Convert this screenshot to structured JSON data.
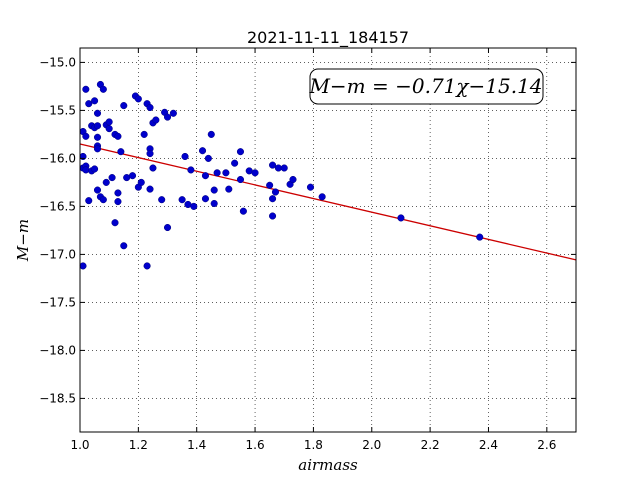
{
  "chart_data": {
    "type": "scatter",
    "title": "2021-11-11_184157",
    "xlabel": "airmass",
    "ylabel": "M−m",
    "xlim": [
      1.0,
      2.7
    ],
    "ylim": [
      -18.85,
      -14.85
    ],
    "y_inverted": true,
    "grid": true,
    "xticks": [
      "1.0",
      "1.2",
      "1.4",
      "1.6",
      "1.8",
      "2.0",
      "2.2",
      "2.4",
      "2.6"
    ],
    "yticks": [
      "−15.0",
      "−15.5",
      "−16.0",
      "−16.5",
      "−17.0",
      "−17.5",
      "−18.0",
      "−18.5"
    ],
    "annotation": "M−m = −0.71χ−15.14",
    "fit": {
      "slope": -0.71,
      "intercept": -15.14,
      "color": "#cc0000"
    },
    "point_color": "#0000cc",
    "points": [
      [
        1.0,
        -15.98
      ],
      [
        1.0,
        -17.12
      ],
      [
        1.01,
        -15.72
      ],
      [
        1.01,
        -16.1
      ],
      [
        1.02,
        -15.28
      ],
      [
        1.02,
        -15.77
      ],
      [
        1.02,
        -16.08
      ],
      [
        1.02,
        -16.12
      ],
      [
        1.03,
        -16.44
      ],
      [
        1.03,
        -15.43
      ],
      [
        1.04,
        -15.66
      ],
      [
        1.04,
        -16.13
      ],
      [
        1.05,
        -15.4
      ],
      [
        1.05,
        -15.68
      ],
      [
        1.05,
        -16.11
      ],
      [
        1.06,
        -15.53
      ],
      [
        1.06,
        -15.66
      ],
      [
        1.06,
        -15.87
      ],
      [
        1.06,
        -15.9
      ],
      [
        1.06,
        -15.78
      ],
      [
        1.06,
        -16.33
      ],
      [
        1.07,
        -15.23
      ],
      [
        1.07,
        -16.4
      ],
      [
        1.08,
        -15.28
      ],
      [
        1.08,
        -16.43
      ],
      [
        1.09,
        -15.65
      ],
      [
        1.09,
        -16.25
      ],
      [
        1.1,
        -15.62
      ],
      [
        1.1,
        -15.69
      ],
      [
        1.11,
        -16.2
      ],
      [
        1.12,
        -15.75
      ],
      [
        1.12,
        -16.67
      ],
      [
        1.13,
        -15.77
      ],
      [
        1.13,
        -16.36
      ],
      [
        1.13,
        -16.45
      ],
      [
        1.14,
        -15.93
      ],
      [
        1.15,
        -16.91
      ],
      [
        1.15,
        -15.45
      ],
      [
        1.16,
        -16.2
      ],
      [
        1.18,
        -16.18
      ],
      [
        1.19,
        -15.35
      ],
      [
        1.2,
        -15.38
      ],
      [
        1.2,
        -16.3
      ],
      [
        1.21,
        -16.25
      ],
      [
        1.22,
        -15.75
      ],
      [
        1.23,
        -17.12
      ],
      [
        1.23,
        -15.43
      ],
      [
        1.24,
        -15.47
      ],
      [
        1.24,
        -15.9
      ],
      [
        1.24,
        -15.95
      ],
      [
        1.24,
        -16.32
      ],
      [
        1.25,
        -15.63
      ],
      [
        1.25,
        -16.1
      ],
      [
        1.26,
        -15.6
      ],
      [
        1.28,
        -16.43
      ],
      [
        1.29,
        -15.52
      ],
      [
        1.3,
        -15.57
      ],
      [
        1.3,
        -16.72
      ],
      [
        1.32,
        -15.53
      ],
      [
        1.35,
        -16.43
      ],
      [
        1.36,
        -15.98
      ],
      [
        1.37,
        -16.48
      ],
      [
        1.38,
        -16.12
      ],
      [
        1.39,
        -16.5
      ],
      [
        1.42,
        -15.92
      ],
      [
        1.43,
        -16.18
      ],
      [
        1.43,
        -16.42
      ],
      [
        1.44,
        -16.0
      ],
      [
        1.45,
        -15.75
      ],
      [
        1.46,
        -16.33
      ],
      [
        1.46,
        -16.47
      ],
      [
        1.47,
        -16.15
      ],
      [
        1.5,
        -16.15
      ],
      [
        1.51,
        -16.32
      ],
      [
        1.53,
        -16.05
      ],
      [
        1.55,
        -15.93
      ],
      [
        1.55,
        -16.22
      ],
      [
        1.56,
        -16.55
      ],
      [
        1.58,
        -16.13
      ],
      [
        1.6,
        -16.15
      ],
      [
        1.65,
        -16.28
      ],
      [
        1.66,
        -16.07
      ],
      [
        1.66,
        -16.42
      ],
      [
        1.66,
        -16.6
      ],
      [
        1.67,
        -16.35
      ],
      [
        1.68,
        -16.1
      ],
      [
        1.7,
        -16.1
      ],
      [
        1.72,
        -16.27
      ],
      [
        1.73,
        -16.22
      ],
      [
        1.79,
        -16.3
      ],
      [
        1.83,
        -16.4
      ],
      [
        2.1,
        -16.62
      ],
      [
        2.37,
        -16.82
      ]
    ]
  }
}
